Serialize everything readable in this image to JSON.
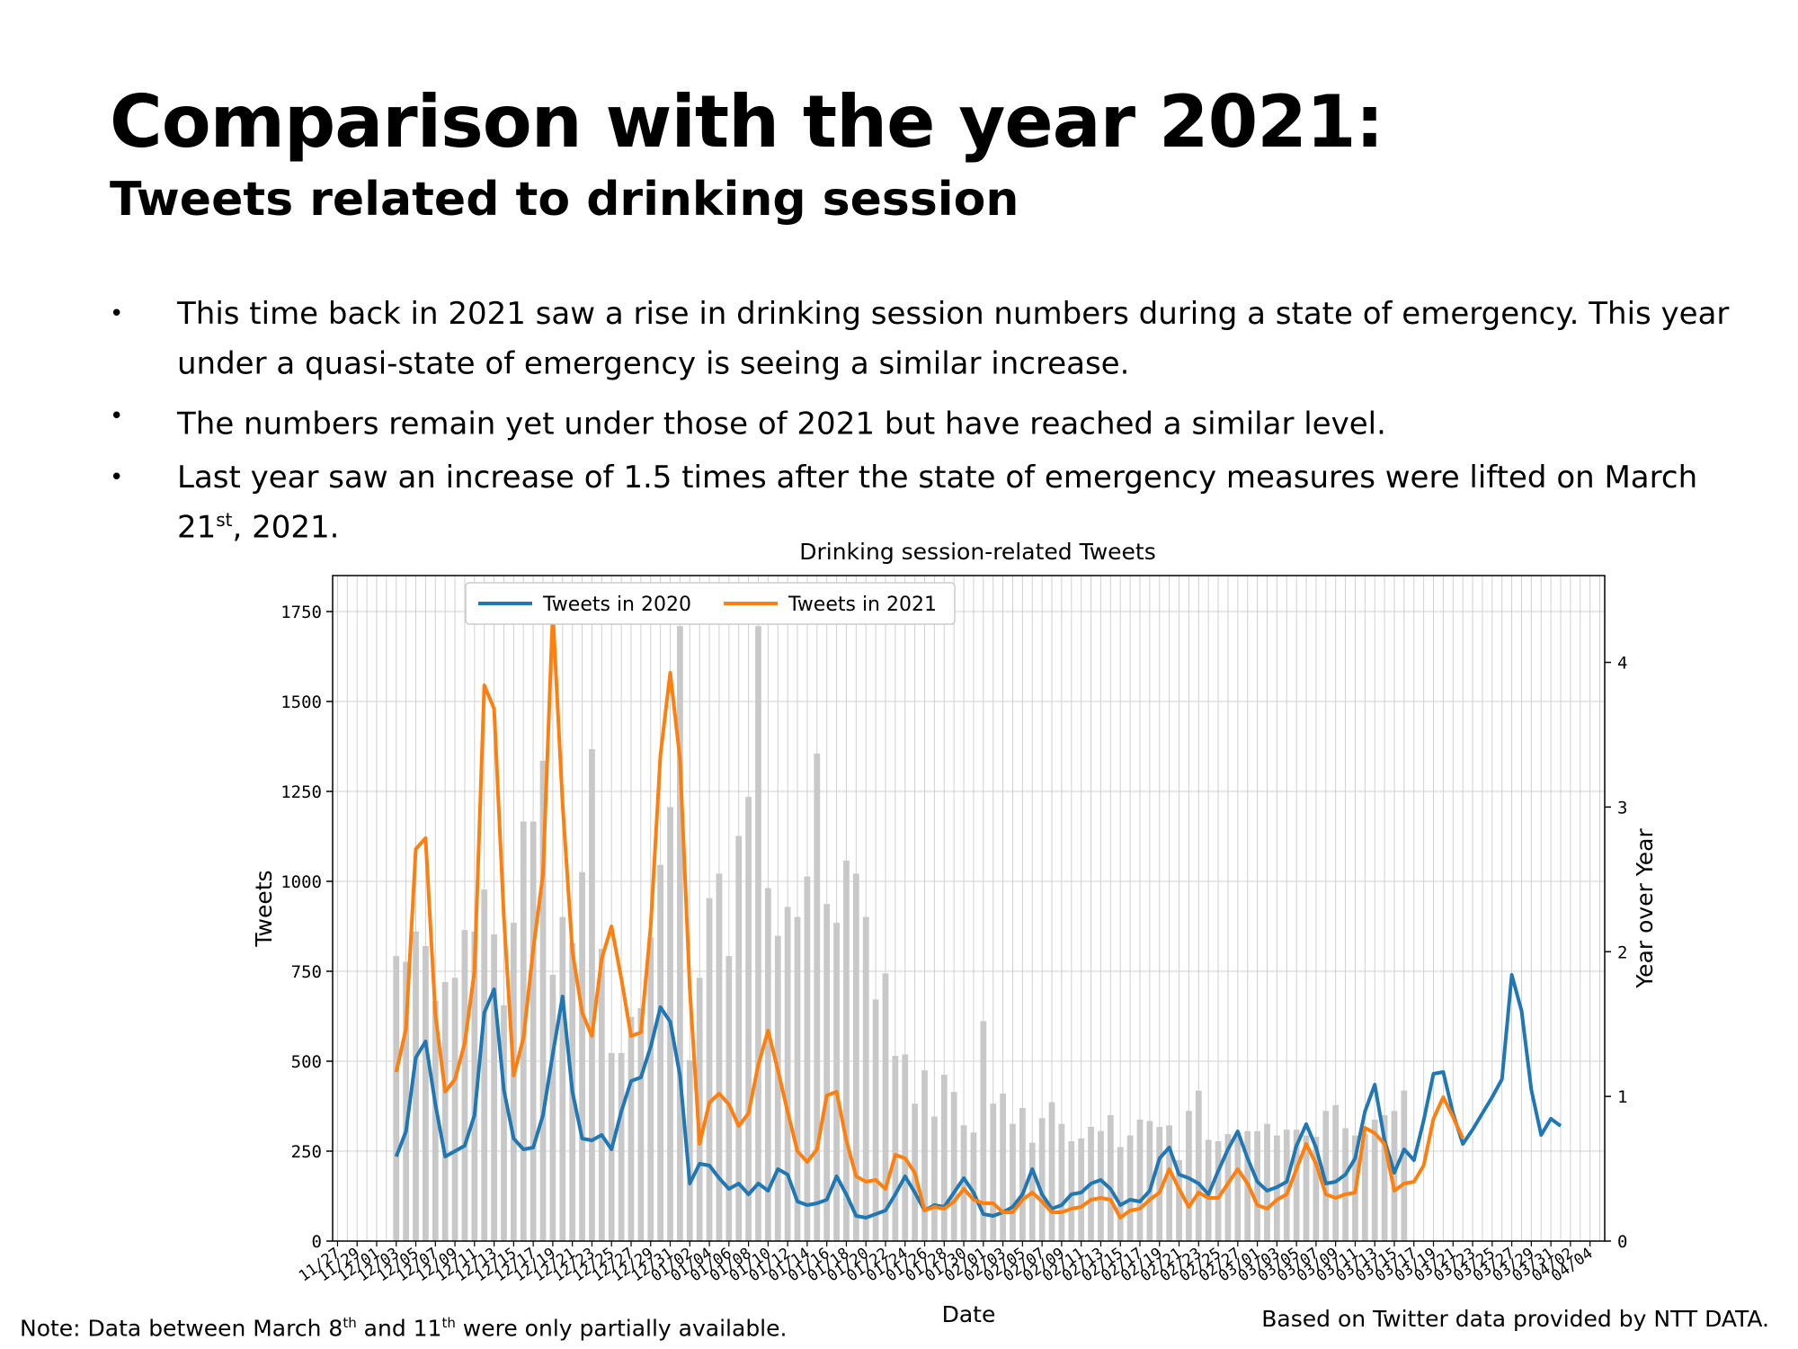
{
  "slide": {
    "title": "Comparison with the year 2021:",
    "subtitle": "Tweets related to drinking session",
    "bullets": [
      {
        "text": "This time back in 2021 saw a rise in drinking session numbers during a state of emergency. This year under a quasi-state of emergency is seeing a similar increase.",
        "sup": "",
        "tail": ""
      },
      {
        "text": "The numbers remain yet under those of 2021 but have reached a similar level.",
        "sup": "",
        "tail": ""
      },
      {
        "text": "Last year saw an increase of 1.5 times after the state of emergency measures were lifted on March 21",
        "sup": "st",
        "tail": ", 2021."
      }
    ],
    "note": {
      "pre": "Note: Data between March 8",
      "sup1": "th",
      "mid": " and 11",
      "sup2": "th",
      "post": " were only partially available."
    },
    "source": "Based on Twitter data provided by NTT DATA."
  },
  "chart_data": {
    "type": "bar+line",
    "title": "Drinking session-related Tweets",
    "xlabel": "Date",
    "ylabel": "Tweets",
    "y2label": "Year over Year",
    "ylim": [
      0,
      1850
    ],
    "y2lim": [
      0,
      4.6
    ],
    "yticks": [
      0,
      250,
      500,
      750,
      1000,
      1250,
      1500,
      1750
    ],
    "y2ticks": [
      0,
      1,
      2,
      3,
      4
    ],
    "grid": true,
    "legend": "top-left",
    "colors": {
      "tweets_2020": "#1f77b4",
      "tweets_2021": "#ff7f0e",
      "bars": "#c8c8c8",
      "grid": "#d0d0d0"
    },
    "x_tick_labels": [
      "11/27",
      "11/29",
      "12/01",
      "12/03",
      "12/05",
      "12/07",
      "12/09",
      "12/11",
      "12/13",
      "12/15",
      "12/17",
      "12/19",
      "12/21",
      "12/23",
      "12/25",
      "12/27",
      "12/29",
      "12/31",
      "01/02",
      "01/04",
      "01/06",
      "01/08",
      "01/10",
      "01/12",
      "01/14",
      "01/16",
      "01/18",
      "01/20",
      "01/22",
      "01/24",
      "01/26",
      "01/28",
      "01/30",
      "02/01",
      "02/03",
      "02/05",
      "02/07",
      "02/09",
      "02/11",
      "02/13",
      "02/15",
      "02/17",
      "02/19",
      "02/21",
      "02/23",
      "02/25",
      "02/27",
      "03/01",
      "03/03",
      "03/05",
      "03/07",
      "03/09",
      "03/11",
      "03/13",
      "03/15",
      "03/17",
      "03/19",
      "03/21",
      "03/23",
      "03/25",
      "03/27",
      "03/29",
      "03/31",
      "04/02",
      "04/04"
    ],
    "x_start": "11/27",
    "x_count": 130,
    "bar_series": {
      "name": "Year over Year",
      "start_date": "12/03",
      "values": [
        1.97,
        1.93,
        2.14,
        2.04,
        1.66,
        1.79,
        1.82,
        2.15,
        2.14,
        2.43,
        2.12,
        1.63,
        2.2,
        2.9,
        2.9,
        3.32,
        1.84,
        2.24,
        2.06,
        2.55,
        3.4,
        2.02,
        1.3,
        1.3,
        1.55,
        1.61,
        2.1,
        2.6,
        3.0,
        4.25,
        1.25,
        1.82,
        2.37,
        2.54,
        1.97,
        2.8,
        3.07,
        4.25,
        2.44,
        2.11,
        2.31,
        2.24,
        2.52,
        3.37,
        2.33,
        2.2,
        2.63,
        2.54,
        2.24,
        1.67,
        1.85,
        1.28,
        1.29,
        0.95,
        1.18,
        0.86,
        1.15,
        1.03,
        0.8,
        0.75,
        1.52,
        0.95,
        1.02,
        0.81,
        0.92,
        0.68,
        0.85,
        0.96,
        0.81,
        0.69,
        0.71,
        0.79,
        0.76,
        0.87,
        0.65,
        0.73,
        0.84,
        0.83,
        0.79,
        0.8,
        0.56,
        0.9,
        1.04,
        0.7,
        0.69,
        0.74,
        0.75,
        0.76,
        0.76,
        0.81,
        0.73,
        0.77,
        0.77,
        0.73,
        0.72,
        0.9,
        0.94,
        0.78,
        0.73,
        0.74,
        0.84,
        0.87,
        0.9,
        1.04
      ]
    },
    "series": [
      {
        "name": "Tweets in 2020",
        "start_date": "12/03",
        "values": [
          235,
          305,
          510,
          555,
          380,
          235,
          250,
          265,
          350,
          635,
          700,
          420,
          285,
          255,
          260,
          350,
          520,
          680,
          415,
          285,
          280,
          295,
          255,
          360,
          445,
          455,
          540,
          650,
          610,
          460,
          160,
          215,
          210,
          175,
          145,
          160,
          130,
          160,
          140,
          200,
          185,
          110,
          100,
          105,
          115,
          180,
          130,
          70,
          65,
          75,
          85,
          130,
          180,
          135,
          85,
          100,
          95,
          135,
          175,
          135,
          75,
          70,
          80,
          95,
          130,
          200,
          130,
          90,
          100,
          130,
          135,
          160,
          170,
          145,
          100,
          115,
          110,
          140,
          230,
          260,
          185,
          175,
          160,
          130,
          195,
          255,
          305,
          230,
          165,
          140,
          150,
          165,
          265,
          325,
          260,
          160,
          165,
          185,
          230,
          360,
          435,
          280,
          190,
          255,
          225,
          335,
          465,
          470,
          355,
          270,
          310,
          355,
          400,
          450,
          740,
          640,
          420,
          295,
          340,
          320
        ]
      },
      {
        "name": "Tweets in 2021",
        "start_date": "12/03",
        "values": [
          470,
          590,
          1090,
          1120,
          630,
          415,
          450,
          550,
          750,
          1545,
          1480,
          900,
          460,
          565,
          810,
          1020,
          1750,
          1215,
          805,
          635,
          570,
          785,
          875,
          730,
          570,
          580,
          875,
          1350,
          1580,
          1340,
          700,
          270,
          385,
          410,
          380,
          320,
          355,
          490,
          585,
          475,
          360,
          250,
          220,
          255,
          405,
          415,
          280,
          180,
          165,
          170,
          145,
          240,
          230,
          190,
          85,
          95,
          90,
          110,
          145,
          115,
          105,
          105,
          80,
          80,
          115,
          135,
          110,
          80,
          80,
          90,
          95,
          115,
          120,
          115,
          65,
          85,
          90,
          115,
          135,
          200,
          145,
          95,
          135,
          120,
          120,
          160,
          200,
          160,
          100,
          90,
          115,
          130,
          200,
          270,
          215,
          130,
          120,
          130,
          135,
          315,
          300,
          270,
          140,
          160,
          165,
          210,
          340,
          400,
          345,
          285
        ]
      }
    ]
  }
}
